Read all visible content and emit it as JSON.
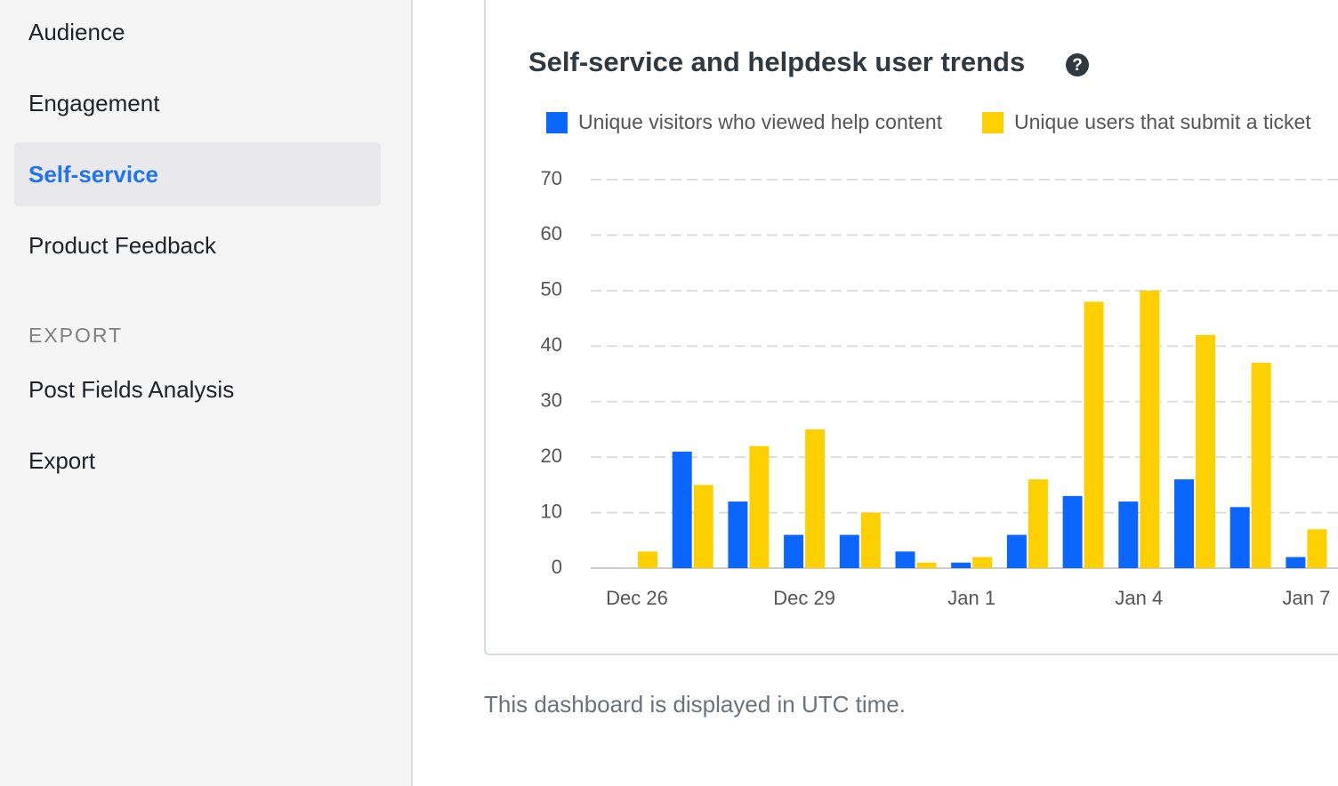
{
  "sidebar": {
    "items": [
      "Audience",
      "Engagement",
      "Self-service",
      "Product Feedback"
    ],
    "section": "EXPORT",
    "export_items": [
      "Post Fields Analysis",
      "Export"
    ]
  },
  "chart_data": {
    "type": "bar",
    "title": "Self-service and helpdesk user trends",
    "help_icon": "?",
    "categories": [
      "Dec 26",
      null,
      null,
      "Dec 29",
      null,
      null,
      "Jan 1",
      null,
      null,
      "Jan 4",
      null,
      null,
      "Jan 7"
    ],
    "series": [
      {
        "name": "Unique visitors who viewed help content",
        "color": "#0a66ff",
        "values": [
          0,
          21,
          12,
          6,
          6,
          3,
          1,
          6,
          13,
          12,
          16,
          11,
          2
        ]
      },
      {
        "name": "Unique users that submit a ticket",
        "color": "#ffd000",
        "values": [
          3,
          15,
          22,
          25,
          10,
          1,
          2,
          16,
          48,
          50,
          42,
          37,
          7
        ]
      }
    ],
    "ylim": [
      0,
      70
    ],
    "yticks": [
      0,
      10,
      20,
      30,
      40,
      50,
      60,
      70
    ],
    "grid": true
  },
  "footer": "This dashboard is displayed in UTC time."
}
